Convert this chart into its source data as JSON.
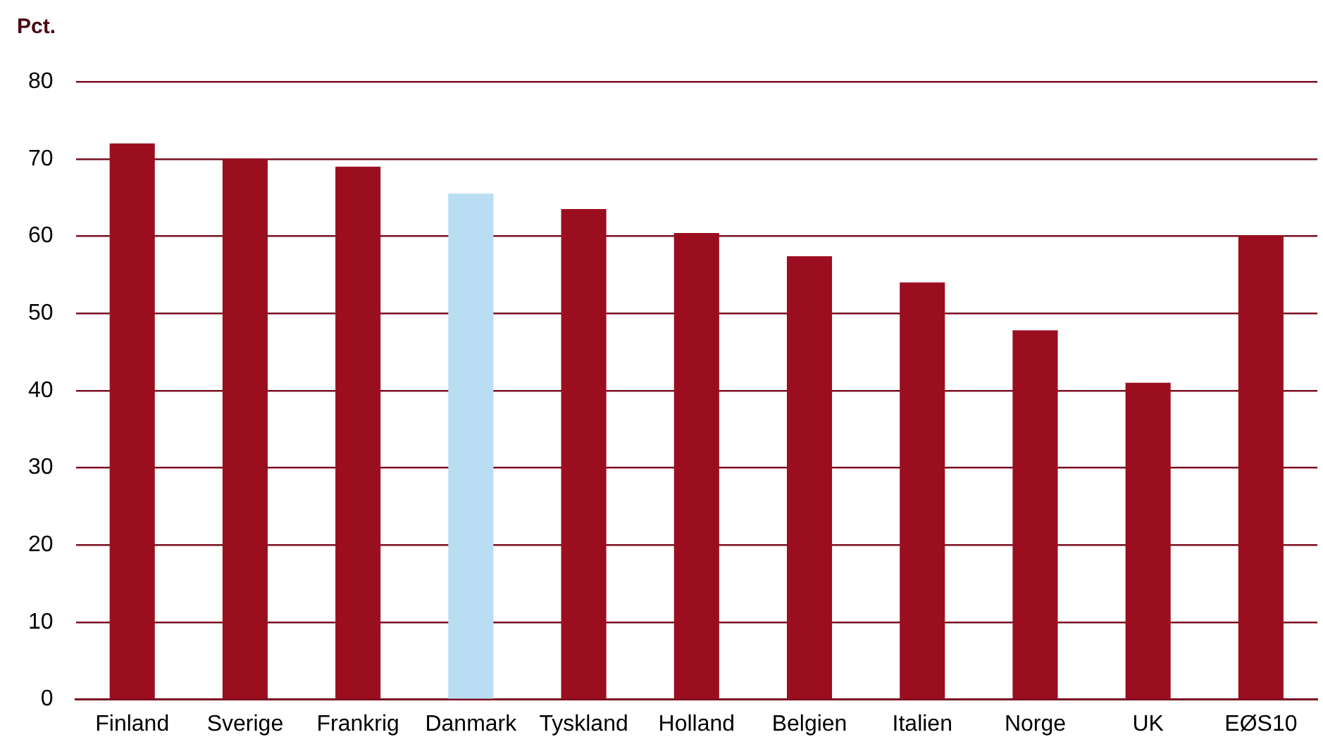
{
  "chart_data": {
    "type": "bar",
    "ylabel": "Pct.",
    "categories": [
      "Finland",
      "Sverige",
      "Frankrig",
      "Danmark",
      "Tyskland",
      "Holland",
      "Belgien",
      "Italien",
      "Norge",
      "UK",
      "EØS10"
    ],
    "values": [
      72,
      70,
      69,
      65.5,
      63.5,
      60.4,
      57.4,
      54,
      47.8,
      41,
      60.1
    ],
    "colors": [
      "#9b0e1f",
      "#9b0e1f",
      "#9b0e1f",
      "#b9ddf2",
      "#9b0e1f",
      "#9b0e1f",
      "#9b0e1f",
      "#9b0e1f",
      "#9b0e1f",
      "#9b0e1f",
      "#9b0e1f"
    ],
    "ylim": [
      0,
      80
    ],
    "yticks": [
      0,
      10,
      20,
      30,
      40,
      50,
      60,
      70,
      80
    ],
    "grid": "y",
    "legend": false
  }
}
